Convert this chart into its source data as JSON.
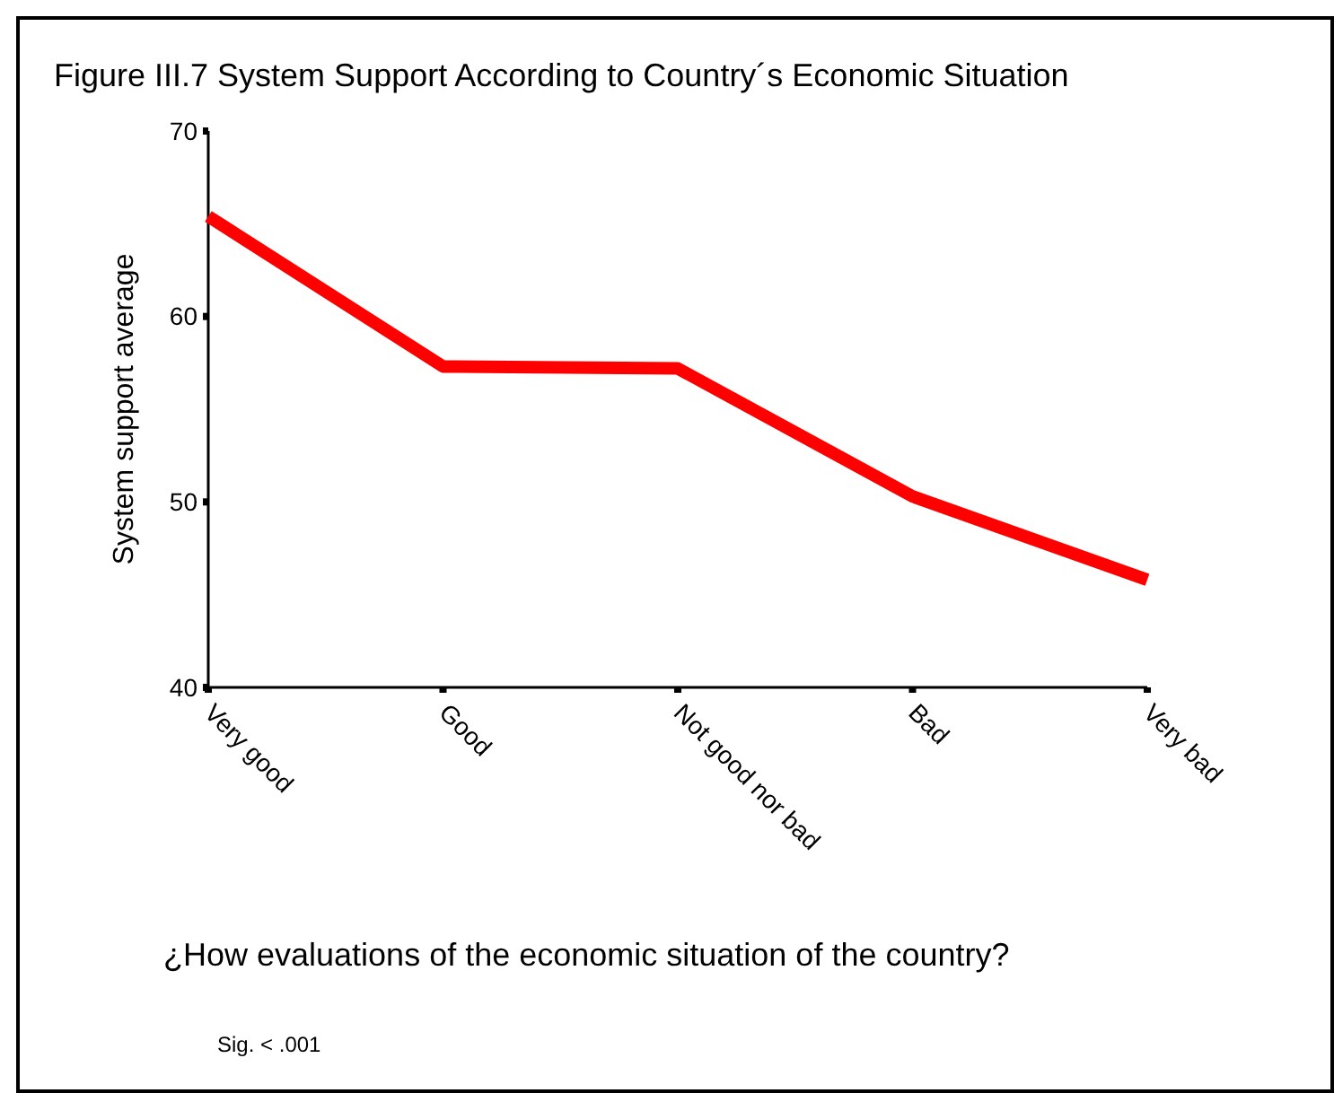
{
  "chart_data": {
    "type": "line",
    "title": "Figure III.7 System Support According to Country´s Economic Situation",
    "xlabel": "¿How evaluations of the economic situation of the country?",
    "ylabel": "System support average",
    "categories": [
      "Very good",
      "Good",
      "Not good nor bad",
      "Bad",
      "Very bad"
    ],
    "series": [
      {
        "color": "#ff0000",
        "values": [
          65.4,
          57.3,
          57.2,
          50.3,
          45.8
        ]
      }
    ],
    "ylim": [
      40,
      70
    ],
    "yticks": [
      40,
      50,
      60,
      70
    ],
    "grid": false,
    "marker": "none",
    "line_style": "solid",
    "annotations": [
      "Sig. < .001"
    ]
  }
}
